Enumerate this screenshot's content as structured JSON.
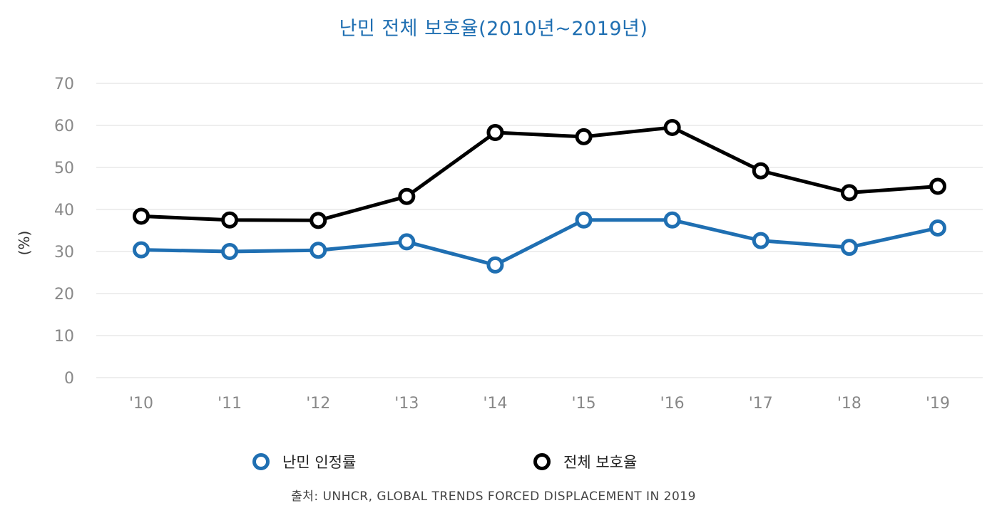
{
  "chart_data": {
    "type": "line",
    "title": "난민 전체 보호율(2010년~2019년)",
    "xlabel": "",
    "ylabel": "(%)",
    "categories": [
      "'10",
      "'11",
      "'12",
      "'13",
      "'14",
      "'15",
      "'16",
      "'17",
      "'18",
      "'19"
    ],
    "yticks": [
      "0",
      "10",
      "20",
      "30",
      "40",
      "50",
      "60",
      "70"
    ],
    "ylim": [
      0,
      70
    ],
    "grid": true,
    "legend_position": "bottom",
    "series": [
      {
        "name": "난민 인정률",
        "color": "#1f6fb2",
        "values": [
          30.4,
          30.0,
          30.3,
          32.3,
          26.8,
          37.5,
          37.5,
          32.6,
          31.0,
          35.6
        ]
      },
      {
        "name": "전체 보호율",
        "color": "#000000",
        "values": [
          38.4,
          37.5,
          37.4,
          43.1,
          58.3,
          57.3,
          59.5,
          49.2,
          44.0,
          45.5
        ]
      }
    ],
    "source": "출처: UNHCR, GLOBAL TRENDS FORCED DISPLACEMENT IN 2019"
  }
}
